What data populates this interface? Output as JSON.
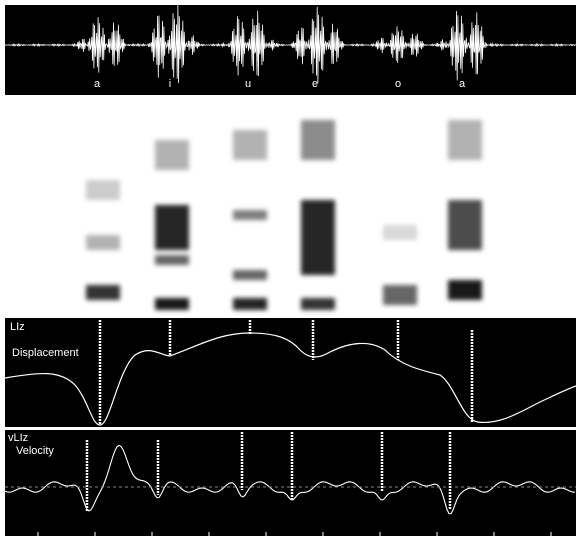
{
  "waveform": {
    "labels": [
      "a",
      "i",
      "u",
      "e",
      "o",
      "a"
    ]
  },
  "displacement": {
    "channel": "LIz",
    "label": "Displacement"
  },
  "velocity": {
    "channel": "vLIz",
    "label": "Velocity"
  }
}
